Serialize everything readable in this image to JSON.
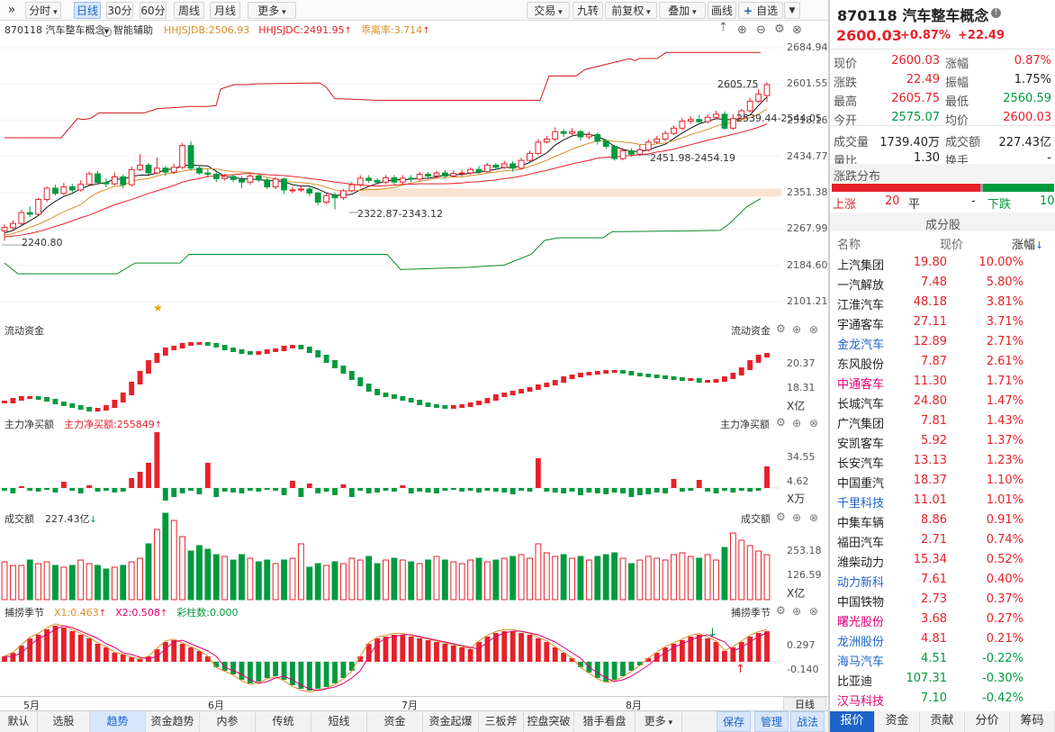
{
  "toolbar": {
    "left": [
      {
        "label": "分时",
        "dd": true
      },
      {
        "label": "日线",
        "on": true
      },
      {
        "label": "30分"
      },
      {
        "label": "60分"
      },
      {
        "label": "周线"
      },
      {
        "label": "月线"
      },
      {
        "label": "更多",
        "dd": true
      }
    ],
    "right": [
      {
        "label": "交易",
        "dd": true
      },
      {
        "label": "九转"
      },
      {
        "label": "前复权",
        "dd": true
      },
      {
        "label": "叠加",
        "dd": true
      },
      {
        "label": "画线"
      },
      {
        "label": "自选",
        "plus": true,
        "dd": true
      }
    ],
    "collapse": "»"
  },
  "quote": {
    "code": "870118",
    "name": "汽车整车概念",
    "price": "2600.03",
    "change_pct": "+0.87%",
    "change": "+22.49",
    "fields": [
      [
        "现价",
        "2600.03",
        "red",
        "涨幅",
        "0.87%",
        "red"
      ],
      [
        "涨跌",
        "22.49",
        "red",
        "振幅",
        "1.75%",
        "dark"
      ],
      [
        "最高",
        "2605.75",
        "red",
        "最低",
        "2560.59",
        "green"
      ],
      [
        "今开",
        "2575.07",
        "green",
        "均价",
        "2600.03",
        "red"
      ],
      [
        "成交量",
        "1739.40万",
        "dark",
        "成交额",
        "227.43亿",
        "dark"
      ],
      [
        "量比",
        "1.30",
        "dark",
        "换手",
        "-",
        "dark"
      ]
    ],
    "dist_title": "涨跌分布",
    "up_label": "上涨",
    "up_count": "20",
    "flat_label": "平",
    "flat_count": "-",
    "down_label": "下跌",
    "down_count": "10",
    "comp_title": "成分股",
    "col_name": "名称",
    "col_price": "现价",
    "col_change": "涨幅",
    "stocks": [
      [
        "上汽集团",
        "19.80",
        "10.00%",
        "dark"
      ],
      [
        "一汽解放",
        "7.48",
        "5.80%",
        "dark"
      ],
      [
        "江淮汽车",
        "48.18",
        "3.81%",
        "dark"
      ],
      [
        "宇通客车",
        "27.11",
        "3.71%",
        "dark"
      ],
      [
        "金龙汽车",
        "12.89",
        "2.71%",
        "blue"
      ],
      [
        "东风股份",
        "7.87",
        "2.61%",
        "dark"
      ],
      [
        "中通客车",
        "11.30",
        "1.71%",
        "mag"
      ],
      [
        "长城汽车",
        "24.80",
        "1.47%",
        "dark"
      ],
      [
        "广汽集团",
        "7.81",
        "1.43%",
        "dark"
      ],
      [
        "安凯客车",
        "5.92",
        "1.37%",
        "dark"
      ],
      [
        "长安汽车",
        "13.13",
        "1.23%",
        "dark"
      ],
      [
        "中国重汽",
        "18.37",
        "1.10%",
        "dark"
      ],
      [
        "千里科技",
        "11.01",
        "1.01%",
        "blue"
      ],
      [
        "中集车辆",
        "8.86",
        "0.91%",
        "dark"
      ],
      [
        "福田汽车",
        "2.71",
        "0.74%",
        "dark"
      ],
      [
        "潍柴动力",
        "15.34",
        "0.52%",
        "dark"
      ],
      [
        "动力新科",
        "7.61",
        "0.40%",
        "blue"
      ],
      [
        "中国铁物",
        "2.73",
        "0.37%",
        "dark"
      ],
      [
        "曙光股份",
        "3.68",
        "0.27%",
        "mag"
      ],
      [
        "龙洲股份",
        "4.81",
        "0.21%",
        "blue"
      ],
      [
        "海马汽车",
        "4.51",
        "-0.22%",
        "blue"
      ],
      [
        "比亚迪",
        "107.31",
        "-0.30%",
        "dark"
      ],
      [
        "汉马科技",
        "7.10",
        "-0.42%",
        "mag"
      ]
    ],
    "tabs": [
      {
        "label": "报价",
        "on": true
      },
      {
        "label": "资金"
      },
      {
        "label": "贡献"
      },
      {
        "label": "分价"
      },
      {
        "label": "筹码"
      }
    ]
  },
  "main": {
    "code_name": "870118 汽车整车概念",
    "assist": "智能辅助",
    "ind": [
      {
        "text": "HHJSJDB:2506.93",
        "color": "#d98f25"
      },
      {
        "text": "HHJSJDC:2491.95",
        "color": "#e62129",
        "arrow": "up"
      },
      {
        "text": "乖离率:3.714",
        "color": "#d98f25",
        "arrow": "up"
      }
    ],
    "axis": [
      "2684.94",
      "2601.55",
      "2518.16",
      "2434.77",
      "2351.38",
      "2267.99",
      "2184.60",
      "2101.21"
    ],
    "labels": [
      {
        "text": "2605.75",
        "x": 797,
        "y": 95
      },
      {
        "text": "2539.44-2544.05",
        "x": 818,
        "y": 133
      },
      {
        "text": "2451.98-2454.19",
        "x": 722,
        "y": 177
      },
      {
        "text": "2322.87-2343.12",
        "x": 397,
        "y": 239
      },
      {
        "text": "2240.80",
        "x": 24,
        "y": 271
      }
    ]
  },
  "flow": {
    "title": "流动资金",
    "right_title": "流动资金",
    "axis": [
      "20.37",
      "18.31"
    ],
    "unit": "X亿"
  },
  "net": {
    "title": "主力净买额",
    "ind": "主力净买额:255849",
    "right_title": "主力净买额",
    "axis": [
      "34.55",
      "4.62"
    ],
    "unit": "X万"
  },
  "amt": {
    "title": "成交额",
    "value": "227.43亿",
    "right_title": "成交额",
    "axis": [
      "253.18",
      "126.59"
    ],
    "unit": "X亿"
  },
  "season": {
    "title": "捕捞季节",
    "ind": [
      {
        "text": "X1:0.463",
        "color": "#d98f25",
        "arrow": "up"
      },
      {
        "text": "X2:0.508",
        "color": "#e0007a",
        "arrow": "up"
      },
      {
        "text": "彩柱数:0.000",
        "color": "#009a3e"
      }
    ],
    "right_title": "捕捞季节",
    "axis": [
      "0.297",
      "-0.140"
    ]
  },
  "months": [
    "5月",
    "6月",
    "7月",
    "8月"
  ],
  "period_label": "日线",
  "bottom_tabs": [
    {
      "label": "默认"
    },
    {
      "label": "选股"
    },
    {
      "label": "趋势",
      "on": true
    },
    {
      "label": "资金趋势"
    },
    {
      "label": "内参"
    },
    {
      "label": "传统"
    },
    {
      "label": "短线"
    },
    {
      "label": "资金"
    },
    {
      "label": "资金起爆"
    },
    {
      "label": "三板斧"
    },
    {
      "label": "控盘突破"
    },
    {
      "label": "猎手看盘"
    },
    {
      "label": "更多",
      "dd": true
    }
  ],
  "bottom_right": [
    {
      "label": "保存"
    },
    {
      "label": "管理"
    },
    {
      "label": "战法"
    }
  ],
  "colors": {
    "up": "#e62129",
    "down": "#009a3e",
    "accent": "#1d63c8"
  },
  "chart_data": {
    "type": "candlestick",
    "title": "870118 汽车整车概念",
    "ylim": [
      2101.21,
      2684.94
    ],
    "candles": [
      [
        2264,
        2272,
        2279,
        2240.8
      ],
      [
        2271,
        2281,
        2288,
        2265
      ],
      [
        2281,
        2306,
        2312,
        2277
      ],
      [
        2306,
        2302,
        2320,
        2295
      ],
      [
        2302,
        2336,
        2340,
        2300
      ],
      [
        2336,
        2362,
        2366,
        2330
      ],
      [
        2362,
        2350,
        2370,
        2345
      ],
      [
        2350,
        2365,
        2374,
        2346
      ],
      [
        2365,
        2358,
        2372,
        2352
      ],
      [
        2358,
        2371,
        2380,
        2354
      ],
      [
        2371,
        2395,
        2400,
        2368
      ],
      [
        2395,
        2375,
        2402,
        2370
      ],
      [
        2375,
        2372,
        2385,
        2364
      ],
      [
        2372,
        2388,
        2398,
        2368
      ],
      [
        2388,
        2370,
        2394,
        2362
      ],
      [
        2370,
        2405,
        2412,
        2366
      ],
      [
        2405,
        2415,
        2440,
        2401
      ],
      [
        2415,
        2397,
        2420,
        2393
      ],
      [
        2397,
        2408,
        2432,
        2394
      ],
      [
        2408,
        2399,
        2413,
        2390
      ],
      [
        2399,
        2410,
        2418,
        2395
      ],
      [
        2410,
        2460,
        2466,
        2406
      ],
      [
        2460,
        2408,
        2470,
        2403
      ],
      [
        2408,
        2397,
        2412,
        2393
      ],
      [
        2397,
        2394,
        2406,
        2386
      ],
      [
        2394,
        2384,
        2398,
        2376
      ],
      [
        2384,
        2389,
        2395,
        2380
      ],
      [
        2389,
        2382,
        2394,
        2376
      ],
      [
        2382,
        2376,
        2390,
        2362
      ],
      [
        2376,
        2390,
        2394,
        2370
      ],
      [
        2390,
        2381,
        2394,
        2376
      ],
      [
        2381,
        2365,
        2386,
        2360
      ],
      [
        2365,
        2383,
        2388,
        2360
      ],
      [
        2383,
        2358,
        2386,
        2349
      ],
      [
        2358,
        2358,
        2365,
        2350
      ],
      [
        2358,
        2360,
        2366,
        2353
      ],
      [
        2360,
        2351,
        2365,
        2344
      ],
      [
        2351,
        2330,
        2354,
        2322.87
      ],
      [
        2330,
        2345,
        2350,
        2325
      ],
      [
        2345,
        2340,
        2352,
        2313
      ],
      [
        2340,
        2356,
        2360,
        2335
      ],
      [
        2356,
        2370,
        2376,
        2352
      ],
      [
        2370,
        2385,
        2392,
        2365
      ],
      [
        2385,
        2380,
        2392,
        2374
      ],
      [
        2380,
        2376,
        2385,
        2370
      ],
      [
        2376,
        2386,
        2392,
        2372
      ],
      [
        2386,
        2376,
        2392,
        2370
      ],
      [
        2376,
        2385,
        2392,
        2372
      ],
      [
        2385,
        2383,
        2392,
        2376
      ],
      [
        2383,
        2394,
        2400,
        2378
      ],
      [
        2394,
        2390,
        2400,
        2384
      ],
      [
        2390,
        2397,
        2402,
        2384
      ],
      [
        2397,
        2390,
        2403,
        2385
      ],
      [
        2390,
        2396,
        2403,
        2386
      ],
      [
        2396,
        2397,
        2405,
        2390
      ],
      [
        2397,
        2405,
        2410,
        2393
      ],
      [
        2405,
        2400,
        2413,
        2395
      ],
      [
        2400,
        2415,
        2420,
        2398
      ],
      [
        2415,
        2410,
        2420,
        2404
      ],
      [
        2410,
        2418,
        2425,
        2406
      ],
      [
        2418,
        2408,
        2424,
        2400
      ],
      [
        2408,
        2426,
        2432,
        2404
      ],
      [
        2426,
        2442,
        2448,
        2420
      ],
      [
        2442,
        2468,
        2475,
        2438
      ],
      [
        2468,
        2475,
        2482,
        2465
      ],
      [
        2475,
        2492,
        2502,
        2470
      ],
      [
        2492,
        2488,
        2498,
        2480
      ],
      [
        2488,
        2492,
        2500,
        2484
      ],
      [
        2492,
        2480,
        2496,
        2472
      ],
      [
        2480,
        2485,
        2492,
        2474
      ],
      [
        2485,
        2470,
        2490,
        2462
      ],
      [
        2470,
        2458,
        2475,
        2451.98
      ],
      [
        2458,
        2430,
        2462,
        2425
      ],
      [
        2430,
        2448,
        2454,
        2426
      ],
      [
        2448,
        2440,
        2454.19,
        2434
      ],
      [
        2440,
        2450,
        2462,
        2436
      ],
      [
        2450,
        2468,
        2474,
        2446
      ],
      [
        2468,
        2475,
        2482,
        2464
      ],
      [
        2475,
        2488,
        2494,
        2470
      ],
      [
        2488,
        2500,
        2506,
        2484
      ],
      [
        2500,
        2516,
        2524,
        2496
      ],
      [
        2516,
        2520,
        2528,
        2510
      ],
      [
        2520,
        2515,
        2530,
        2508
      ],
      [
        2515,
        2525,
        2532,
        2511
      ],
      [
        2525,
        2532,
        2540,
        2520
      ],
      [
        2532,
        2500,
        2539,
        2496
      ],
      [
        2500,
        2522,
        2532,
        2496
      ],
      [
        2522,
        2540,
        2544.05,
        2518
      ],
      [
        2540,
        2562,
        2570,
        2536
      ],
      [
        2562,
        2578,
        2590,
        2558
      ],
      [
        2575.07,
        2600.03,
        2605.75,
        2560.59
      ]
    ],
    "ma": [
      {
        "name": "MA5",
        "color": "#111111",
        "values": [
          2259,
          2265,
          2276,
          2287,
          2299,
          2318,
          2332,
          2343,
          2350,
          2361,
          2368,
          2372,
          2375,
          2383,
          2383,
          2389,
          2392,
          2392,
          2397,
          2405,
          2406,
          2414,
          2415,
          2414,
          2413,
          2401,
          2389,
          2386,
          2384,
          2383,
          2382,
          2379,
          2379,
          2377,
          2370,
          2367,
          2367,
          2360,
          2351,
          2346,
          2346,
          2348,
          2358,
          2366,
          2373,
          2378,
          2382,
          2381,
          2383,
          2384,
          2385,
          2388,
          2392,
          2393,
          2393,
          2397,
          2398,
          2403,
          2405,
          2410,
          2409,
          2414,
          2421,
          2432,
          2443,
          2461,
          2473,
          2482,
          2486,
          2486,
          2481,
          2472,
          2458,
          2451,
          2447,
          2446,
          2450,
          2457,
          2463,
          2476,
          2489,
          2500,
          2510,
          2516,
          2522,
          2520,
          2519,
          2523,
          2530,
          2552,
          2572
        ]
      },
      {
        "name": "MA10",
        "color": "#d98f25",
        "values": [
          2254,
          2258,
          2264,
          2272,
          2279,
          2288,
          2298,
          2308,
          2316,
          2324,
          2340,
          2352,
          2359,
          2366,
          2368,
          2378,
          2382,
          2384,
          2390,
          2395,
          2397,
          2401,
          2404,
          2405,
          2407,
          2406,
          2403,
          2400,
          2399,
          2398,
          2394,
          2387,
          2383,
          2380,
          2376,
          2375,
          2373,
          2370,
          2364,
          2358,
          2355,
          2356,
          2357,
          2359,
          2359,
          2361,
          2364,
          2369,
          2374,
          2378,
          2381,
          2385,
          2386,
          2388,
          2388,
          2391,
          2393,
          2397,
          2399,
          2402,
          2403,
          2406,
          2412,
          2419,
          2426,
          2435,
          2443,
          2452,
          2459,
          2465,
          2471,
          2472,
          2470,
          2468,
          2466,
          2463,
          2462,
          2464,
          2466,
          2471,
          2478,
          2485,
          2491,
          2497,
          2505,
          2510,
          2515,
          2520,
          2524,
          2532,
          2544
        ]
      },
      {
        "name": "MA20",
        "color": "#e62129",
        "values": [
          2250,
          2252,
          2254,
          2258,
          2262,
          2268,
          2274,
          2280,
          2287,
          2294,
          2300,
          2308,
          2316,
          2324,
          2330,
          2336,
          2343,
          2350,
          2356,
          2362,
          2368,
          2376,
          2381,
          2384,
          2389,
          2390,
          2392,
          2393,
          2395,
          2396,
          2395,
          2393,
          2392,
          2391,
          2389,
          2387,
          2384,
          2382,
          2379,
          2376,
          2374,
          2371,
          2369,
          2368,
          2367,
          2368,
          2369,
          2371,
          2371,
          2372,
          2372,
          2372,
          2372,
          2373,
          2374,
          2376,
          2377,
          2379,
          2381,
          2384,
          2386,
          2390,
          2394,
          2399,
          2403,
          2408,
          2413,
          2418,
          2422,
          2426,
          2431,
          2433,
          2434,
          2436,
          2437,
          2439,
          2441,
          2445,
          2448,
          2452,
          2457,
          2462,
          2467,
          2472,
          2477,
          2481,
          2486,
          2491,
          2496,
          2502,
          2510
        ]
      }
    ],
    "band_upper": [
      2478,
      2478,
      2478,
      2478,
      2478,
      2478,
      2478,
      2478,
      2478,
      2478,
      2478,
      2478,
      2490,
      2505,
      2505,
      2522,
      2522,
      2535,
      2535,
      2535,
      2535,
      2535,
      2535,
      2535,
      2535,
      2535,
      2535,
      2535,
      2535,
      2535,
      2535,
      2535,
      2535,
      2535,
      2535,
      2535,
      2535,
      2535,
      2535,
      2535,
      2535,
      2535,
      2535,
      2535,
      2535,
      2535,
      2535,
      2535,
      2535,
      2535,
      2535,
      2535,
      2535,
      2535,
      2535,
      2535,
      2535,
      2535,
      2535,
      2535,
      2535,
      2535,
      2535,
      2535,
      2535,
      2535,
      2535,
      2535,
      2535,
      2535,
      2535,
      2535,
      2535,
      2535,
      2535,
      2535,
      2535,
      2535,
      2535,
      2535,
      2535,
      2535,
      2535,
      2535,
      2535,
      2535,
      2535,
      2535,
      2535,
      2535,
      2535
    ]
  }
}
